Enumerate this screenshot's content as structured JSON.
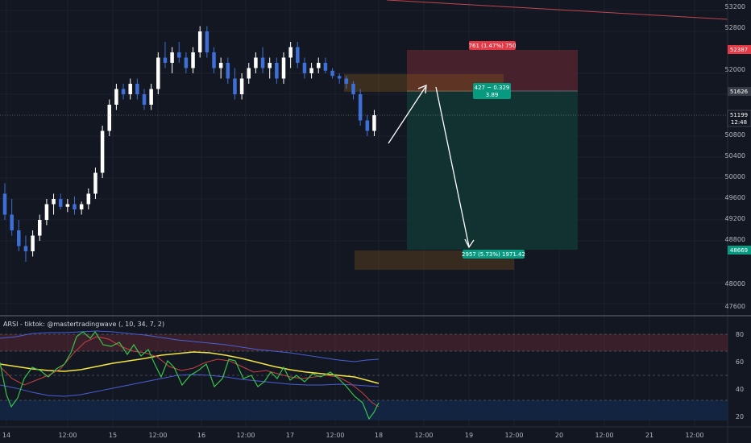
{
  "price_axis": {
    "labels": [
      "53200",
      "52800",
      "52000",
      "51600",
      "50800",
      "50400",
      "50000",
      "49600",
      "49200",
      "48800",
      "48000",
      "47600"
    ],
    "tag_stop": "52387",
    "tag_entry": "51626",
    "tag_current": "51199",
    "tag_countdown": "12:48",
    "tag_target": "48669"
  },
  "indicator_axis": {
    "labels": [
      "80",
      "60",
      "40",
      "20"
    ]
  },
  "time_axis": {
    "labels": [
      "14",
      "12:00",
      "15",
      "12:00",
      "16",
      "12:00",
      "17",
      "12:00",
      "18",
      "12:00",
      "19",
      "12:00",
      "20",
      "12:00",
      "21",
      "12:00"
    ]
  },
  "position": {
    "stop_label": "761 (1.47%) 750",
    "entry_label_1": "427 ~ 0.329",
    "entry_label_2": "3.89",
    "target_label": "2957 (5.73%) 1971.42"
  },
  "indicator": {
    "title": "ARSI - tiktok: @mastertradingwave (, 10, 34, 7, 2)"
  },
  "colors": {
    "background": "#131722",
    "bull": "#ffffff",
    "bear": "#3d6fd6",
    "stop_zone": "#5a2630",
    "target_zone": "#113a36",
    "stop_tag": "#e53945",
    "target_tag": "#089981"
  },
  "chart_data": {
    "type": "candlestick",
    "price_range": [
      47400,
      53400
    ],
    "candles_ohlc": [
      [
        49700,
        49900,
        49200,
        49300
      ],
      [
        49300,
        49600,
        48900,
        49000
      ],
      [
        49000,
        49200,
        48600,
        48700
      ],
      [
        48700,
        48900,
        48400,
        48600
      ],
      [
        48600,
        49000,
        48500,
        48900
      ],
      [
        48900,
        49300,
        48800,
        49200
      ],
      [
        49200,
        49600,
        49100,
        49500
      ],
      [
        49500,
        49700,
        49300,
        49600
      ],
      [
        49600,
        49700,
        49400,
        49450
      ],
      [
        49450,
        49600,
        49350,
        49500
      ],
      [
        49500,
        49650,
        49300,
        49400
      ],
      [
        49400,
        49550,
        49300,
        49500
      ],
      [
        49500,
        49800,
        49400,
        49700
      ],
      [
        49700,
        50200,
        49600,
        50100
      ],
      [
        50100,
        51000,
        50000,
        50900
      ],
      [
        50900,
        51500,
        50800,
        51400
      ],
      [
        51400,
        51800,
        51300,
        51700
      ],
      [
        51700,
        51800,
        51500,
        51600
      ],
      [
        51600,
        51900,
        51500,
        51800
      ],
      [
        51800,
        51900,
        51500,
        51600
      ],
      [
        51600,
        51700,
        51300,
        51400
      ],
      [
        51400,
        51800,
        51300,
        51700
      ],
      [
        51700,
        52400,
        51600,
        52300
      ],
      [
        52300,
        52600,
        52100,
        52200
      ],
      [
        52200,
        52500,
        52000,
        52400
      ],
      [
        52400,
        52600,
        52200,
        52300
      ],
      [
        52300,
        52400,
        52000,
        52100
      ],
      [
        52100,
        52500,
        52000,
        52400
      ],
      [
        52400,
        52900,
        52300,
        52800
      ],
      [
        52800,
        52900,
        52300,
        52400
      ],
      [
        52400,
        52500,
        52000,
        52100
      ],
      [
        52100,
        52300,
        51900,
        52200
      ],
      [
        52200,
        52300,
        51800,
        51900
      ],
      [
        51900,
        52100,
        51500,
        51600
      ],
      [
        51600,
        52000,
        51500,
        51900
      ],
      [
        51900,
        52200,
        51800,
        52100
      ],
      [
        52100,
        52400,
        52000,
        52300
      ],
      [
        52300,
        52500,
        52000,
        52100
      ],
      [
        52100,
        52300,
        51900,
        52200
      ],
      [
        52200,
        52300,
        51800,
        51900
      ],
      [
        51900,
        52400,
        51800,
        52300
      ],
      [
        52300,
        52600,
        52100,
        52500
      ],
      [
        52500,
        52600,
        52100,
        52200
      ],
      [
        52200,
        52300,
        51900,
        52000
      ],
      [
        52000,
        52200,
        51900,
        52100
      ],
      [
        52100,
        52300,
        52000,
        52200
      ],
      [
        52200,
        52300,
        52000,
        52050
      ],
      [
        52050,
        52100,
        51900,
        51950
      ],
      [
        51950,
        52000,
        51800,
        51900
      ],
      [
        51900,
        51950,
        51700,
        51800
      ],
      [
        51800,
        51850,
        51500,
        51600
      ],
      [
        51600,
        51700,
        51000,
        51100
      ],
      [
        51100,
        51200,
        50800,
        50900
      ],
      [
        50900,
        51300,
        50800,
        51200
      ]
    ],
    "position": {
      "stop": 52387,
      "entry": 51626,
      "target": 48669
    },
    "indicator": {
      "range": [
        15,
        90
      ],
      "levels": [
        80,
        70,
        50,
        30
      ]
    }
  }
}
